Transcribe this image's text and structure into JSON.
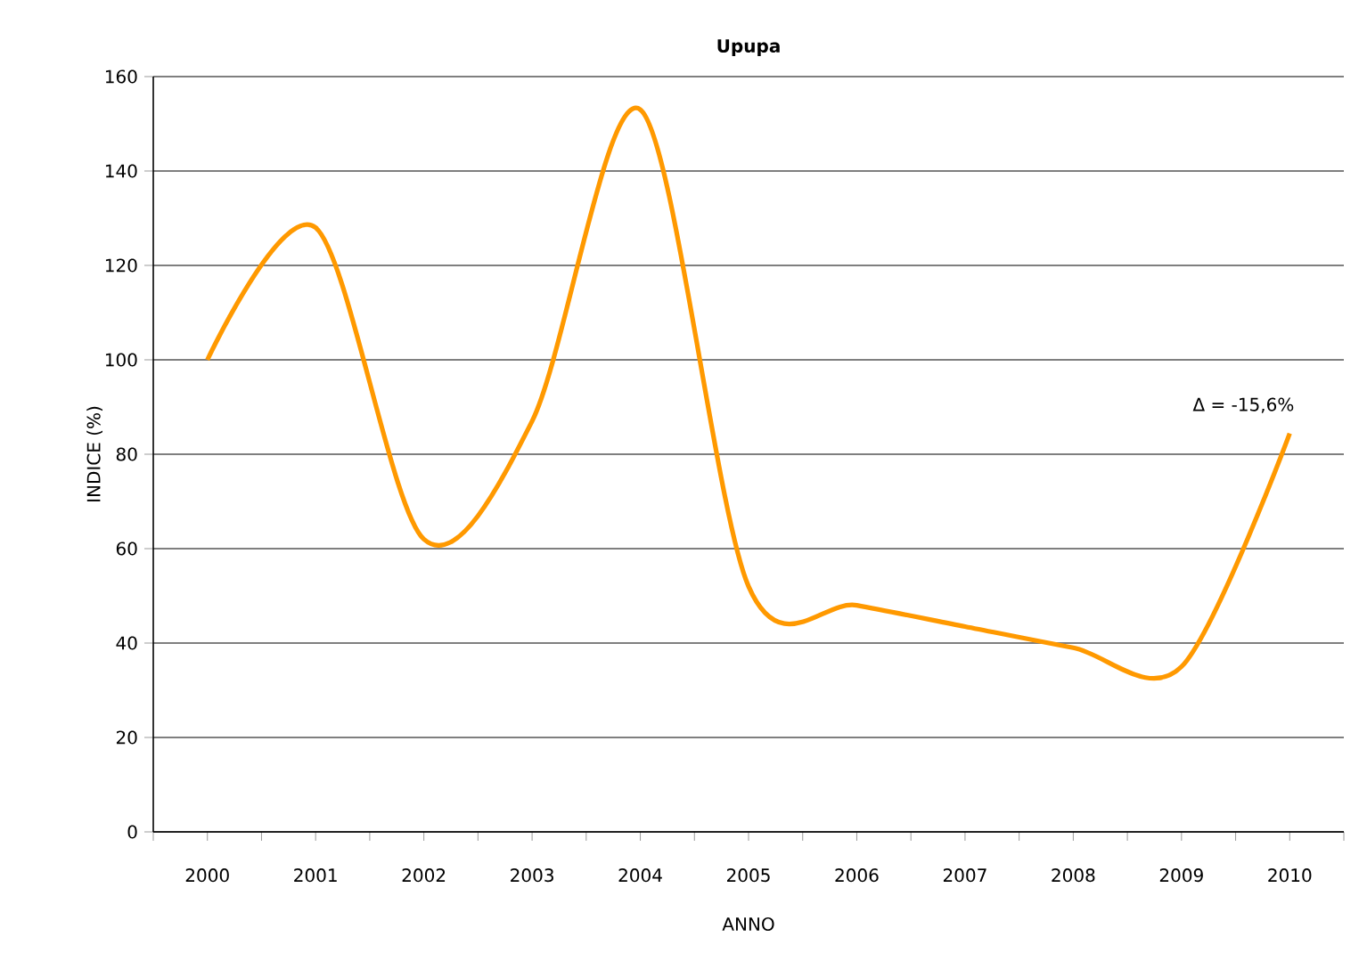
{
  "chart_data": {
    "type": "line",
    "title": "Upupa",
    "xlabel": "ANNO",
    "ylabel": "INDICE (%)",
    "categories": [
      "2000",
      "2001",
      "2002",
      "2003",
      "2004",
      "2005",
      "2006",
      "2007",
      "2008",
      "2009",
      "2010"
    ],
    "series": [
      {
        "color": "#ff9900",
        "values": [
          100,
          128,
          62,
          87,
          153,
          52,
          48,
          43.5,
          39,
          35,
          84.4
        ]
      }
    ],
    "ylim": [
      0,
      160
    ],
    "yticks": [
      0,
      20,
      40,
      60,
      80,
      100,
      120,
      140,
      160
    ],
    "grid": "y",
    "marker": "none",
    "line_style": "solid",
    "annotations": [
      {
        "text": "Δ = -15,6%",
        "x": "2010",
        "y": 84.4
      }
    ]
  }
}
